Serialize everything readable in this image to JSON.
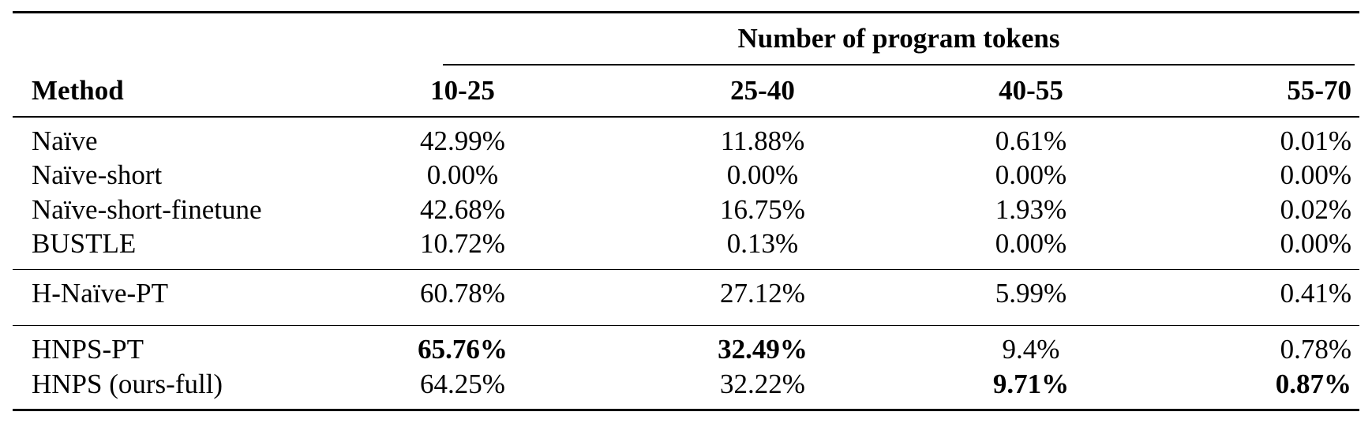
{
  "table": {
    "group_header": "Number of program tokens",
    "columns": {
      "method": "Method",
      "c1": "10-25",
      "c2": "25-40",
      "c3": "40-55",
      "c4": "55-70"
    },
    "block1": [
      {
        "method": "Naïve",
        "c1": "42.99%",
        "c2": "11.88%",
        "c3": "0.61%",
        "c4": "0.01%"
      },
      {
        "method": "Naïve-short",
        "c1": "0.00%",
        "c2": "0.00%",
        "c3": "0.00%",
        "c4": "0.00%"
      },
      {
        "method": "Naïve-short-finetune",
        "c1": "42.68%",
        "c2": "16.75%",
        "c3": "1.93%",
        "c4": "0.02%"
      },
      {
        "method": "BUSTLE",
        "c1": "10.72%",
        "c2": "0.13%",
        "c3": "0.00%",
        "c4": "0.00%"
      }
    ],
    "block2": [
      {
        "method": "H-Naïve-PT",
        "c1": "60.78%",
        "c2": "27.12%",
        "c3": "5.99%",
        "c4": "0.41%"
      }
    ],
    "block3": [
      {
        "method": "HNPS-PT",
        "c1": "65.76%",
        "c2": "32.49%",
        "c3": "9.4%",
        "c4": "0.78%"
      },
      {
        "method": "HNPS (ours-full)",
        "c1": "64.25%",
        "c2": "32.22%",
        "c3": "9.71%",
        "c4": "0.87%"
      }
    ]
  }
}
